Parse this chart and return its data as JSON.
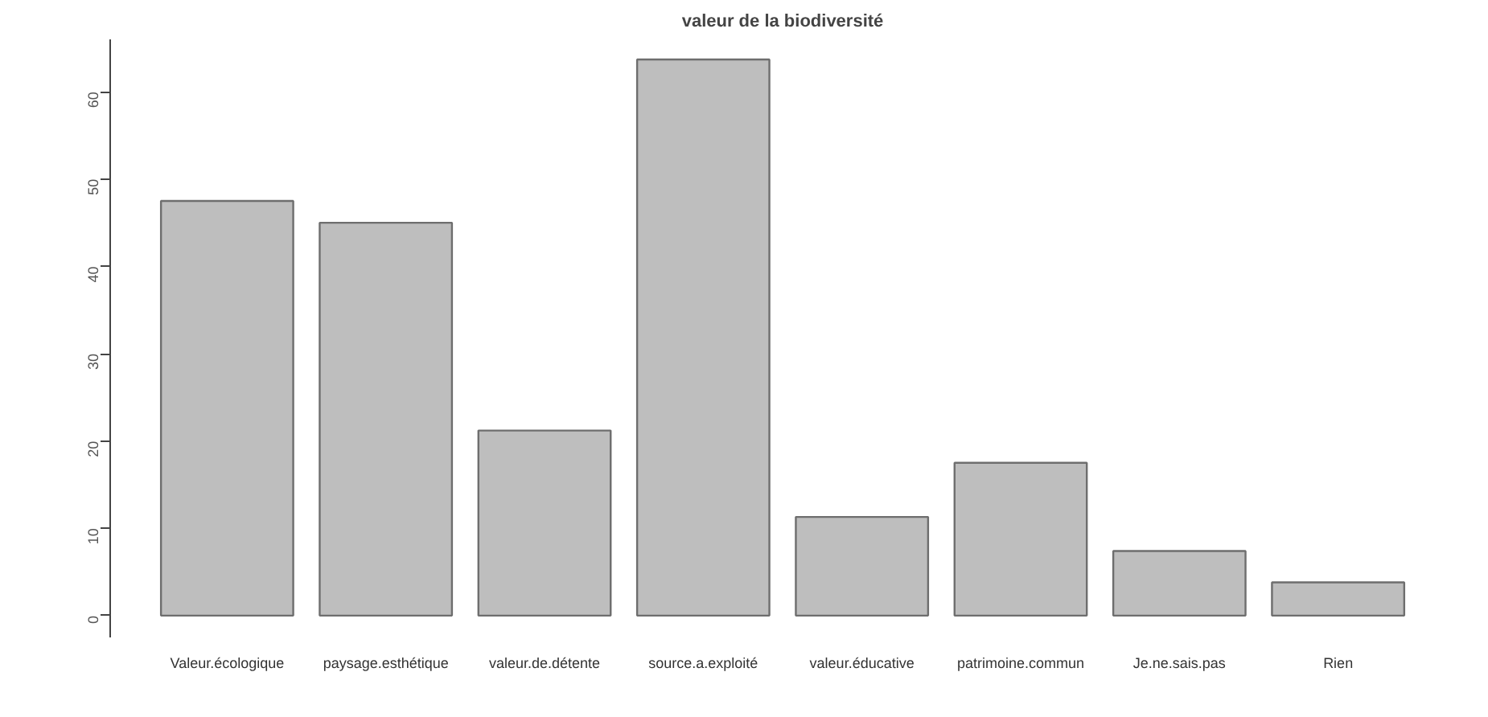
{
  "chart_data": {
    "type": "bar",
    "title": "valeur de la biodiversité",
    "categories": [
      "Valeur.écologique",
      "paysage.esthétique",
      "valeur.de.détente",
      "source.a.exploité",
      "valeur.éducative",
      "patrimoine.commun",
      "Je.ne.sais.pas",
      "Rien"
    ],
    "values": [
      47.5,
      45,
      21.2,
      63.7,
      11.3,
      17.5,
      7.4,
      3.8
    ],
    "color": "#bebebe",
    "ylim": [
      -2.5,
      66
    ],
    "yticks": [
      0,
      10,
      20,
      30,
      40,
      50,
      60
    ],
    "grid": false
  }
}
